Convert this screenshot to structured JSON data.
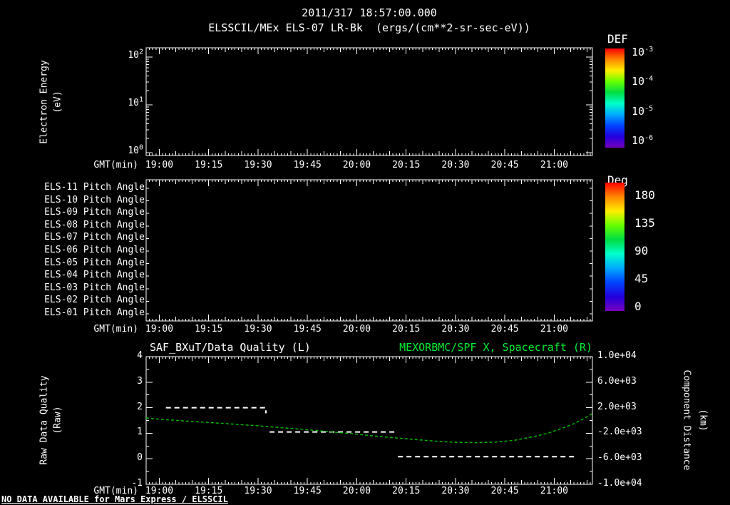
{
  "header": {
    "timestamp": "2011/317 18:57:00.000",
    "subtitle": "ELSSCIL/MEx ELS-07 LR-Bk  (ergs/(cm**2-sr-sec-eV))"
  },
  "footer": {
    "no_data_note": "NO DATA AVAILABLE for Mars Express / ELSSCIL"
  },
  "colors": {
    "background": "#000000",
    "foreground": "#ffffff",
    "accent_green": "#00ee33",
    "curve_green": "#00b400",
    "rainbow": [
      "#ff0000",
      "#ff8800",
      "#ffee00",
      "#66ff00",
      "#00dd44",
      "#00ffcc",
      "#00aaff",
      "#0044ff",
      "#2200dd",
      "#7700bb"
    ]
  },
  "time_axis": {
    "label": "GMT(min)",
    "tick_labels": [
      "19:00",
      "19:15",
      "19:30",
      "19:45",
      "20:00",
      "20:15",
      "20:30",
      "20:45",
      "21:00"
    ],
    "tick_minutes": [
      0,
      15,
      30,
      45,
      60,
      75,
      90,
      105,
      120
    ],
    "range_minutes": [
      -4,
      131.6
    ]
  },
  "energy_panel": {
    "ylabel_lines": [
      "Electron Energy",
      "(eV)"
    ],
    "ytick_exponents": [
      2,
      1,
      0
    ],
    "colorbar": {
      "title": "DEF",
      "tick_exponents": [
        -3,
        -4,
        -5,
        -6
      ]
    }
  },
  "pitch_panel": {
    "row_labels": [
      "ELS-11 Pitch Angle",
      "ELS-10 Pitch Angle",
      "ELS-09 Pitch Angle",
      "ELS-08 Pitch Angle",
      "ELS-07 Pitch Angle",
      "ELS-06 Pitch Angle",
      "ELS-05 Pitch Angle",
      "ELS-04 Pitch Angle",
      "ELS-03 Pitch Angle",
      "ELS-02 Pitch Angle",
      "ELS-01 Pitch Angle"
    ],
    "colorbar": {
      "title": "Deg",
      "tick_labels": [
        "180",
        "135",
        "90",
        "45",
        "0"
      ]
    }
  },
  "quality_panel": {
    "title_left": "SAF_BXuT/Data Quality (L)",
    "title_right": "MEXORBMC/SPF X, Spacecraft (R)",
    "ylabel_left_lines": [
      "Raw Data Quality",
      "(Raw)"
    ],
    "ylabel_right_lines": [
      "Component Distance",
      "(km)"
    ],
    "ytick_labels_left": [
      "4",
      "3",
      "2",
      "1",
      "0",
      "-1"
    ],
    "ytick_labels_right": [
      "1.0e+04",
      "6.0e+03",
      "2.0e+03",
      "-2.0e+03",
      "-6.0e+03",
      "-1.0e+04"
    ]
  },
  "chart_data": [
    {
      "type": "heatmap",
      "title": "ELSSCIL/MEx ELS-07 LR-Bk (ergs/(cm**2-sr-sec-eV))",
      "xlabel": "GMT(min)",
      "x_tick_labels": [
        "19:00",
        "19:15",
        "19:30",
        "19:45",
        "20:00",
        "20:15",
        "20:30",
        "20:45",
        "21:00"
      ],
      "ylabel": "Electron Energy (eV)",
      "yscale": "log",
      "ytick_values": [
        1,
        10,
        100
      ],
      "colorbar_label": "DEF",
      "colorbar_tick_values": [
        0.001,
        0.0001,
        1e-05,
        1e-06
      ],
      "values": [],
      "note": "empty panel - no data available"
    },
    {
      "type": "heatmap",
      "xlabel": "GMT(min)",
      "x_tick_labels": [
        "19:00",
        "19:15",
        "19:30",
        "19:45",
        "20:00",
        "20:15",
        "20:30",
        "20:45",
        "21:00"
      ],
      "row_labels": [
        "ELS-11 Pitch Angle",
        "ELS-10 Pitch Angle",
        "ELS-09 Pitch Angle",
        "ELS-08 Pitch Angle",
        "ELS-07 Pitch Angle",
        "ELS-06 Pitch Angle",
        "ELS-05 Pitch Angle",
        "ELS-04 Pitch Angle",
        "ELS-03 Pitch Angle",
        "ELS-02 Pitch Angle",
        "ELS-01 Pitch Angle"
      ],
      "colorbar_label": "Deg",
      "colorbar_tick_values": [
        180,
        135,
        90,
        45,
        0
      ],
      "values": [],
      "note": "empty panel - no data available"
    },
    {
      "type": "line",
      "title_left": "SAF_BXuT/Data Quality (L)",
      "title_right": "MEXORBMC/SPF X, Spacecraft (R)",
      "xlabel": "GMT(min)",
      "x_tick_labels": [
        "19:00",
        "19:15",
        "19:30",
        "19:45",
        "20:00",
        "20:15",
        "20:30",
        "20:45",
        "21:00"
      ],
      "x_minutes_after_1900_range": [
        -4,
        131.6
      ],
      "ylabel_left": "Raw Data Quality (Raw)",
      "ylim_left": [
        -1,
        4
      ],
      "ylabel_right": "Component Distance (km)",
      "ylim_right": [
        -10000,
        10000
      ],
      "series": [
        {
          "name": "SAF_BXuT/Data Quality",
          "axis": "left",
          "color": "#ffffff",
          "linestyle": "dashed",
          "segments": [
            {
              "points": [
                [
                  2,
                  2.0
                ],
                [
                  32.4,
                  2.0
                ],
                [
                  32.4,
                  1.78
                ]
              ]
            },
            {
              "points": [
                [
                  33.5,
                  1.05
                ],
                [
                  71.4,
                  1.05
                ]
              ]
            },
            {
              "points": [
                [
                  72.5,
                  0.08
                ],
                [
                  126,
                  0.08
                ]
              ]
            }
          ]
        },
        {
          "name": "MEXORBMC/SPF X, Spacecraft",
          "axis": "right",
          "units": "km",
          "color": "#00b400",
          "linestyle": "dashed",
          "points": [
            [
              -4,
              400
            ],
            [
              0,
              200
            ],
            [
              10,
              -160
            ],
            [
              20,
              -480
            ],
            [
              30,
              -840
            ],
            [
              40,
              -1240
            ],
            [
              50,
              -1680
            ],
            [
              60,
              -2160
            ],
            [
              68,
              -2560
            ],
            [
              76,
              -2920
            ],
            [
              84,
              -3240
            ],
            [
              90,
              -3420
            ],
            [
              96,
              -3480
            ],
            [
              102,
              -3400
            ],
            [
              108,
              -3100
            ],
            [
              114,
              -2500
            ],
            [
              118,
              -2000
            ],
            [
              122,
              -1300
            ],
            [
              126,
              -500
            ],
            [
              129,
              300
            ],
            [
              131.6,
              1100
            ]
          ]
        }
      ]
    }
  ]
}
